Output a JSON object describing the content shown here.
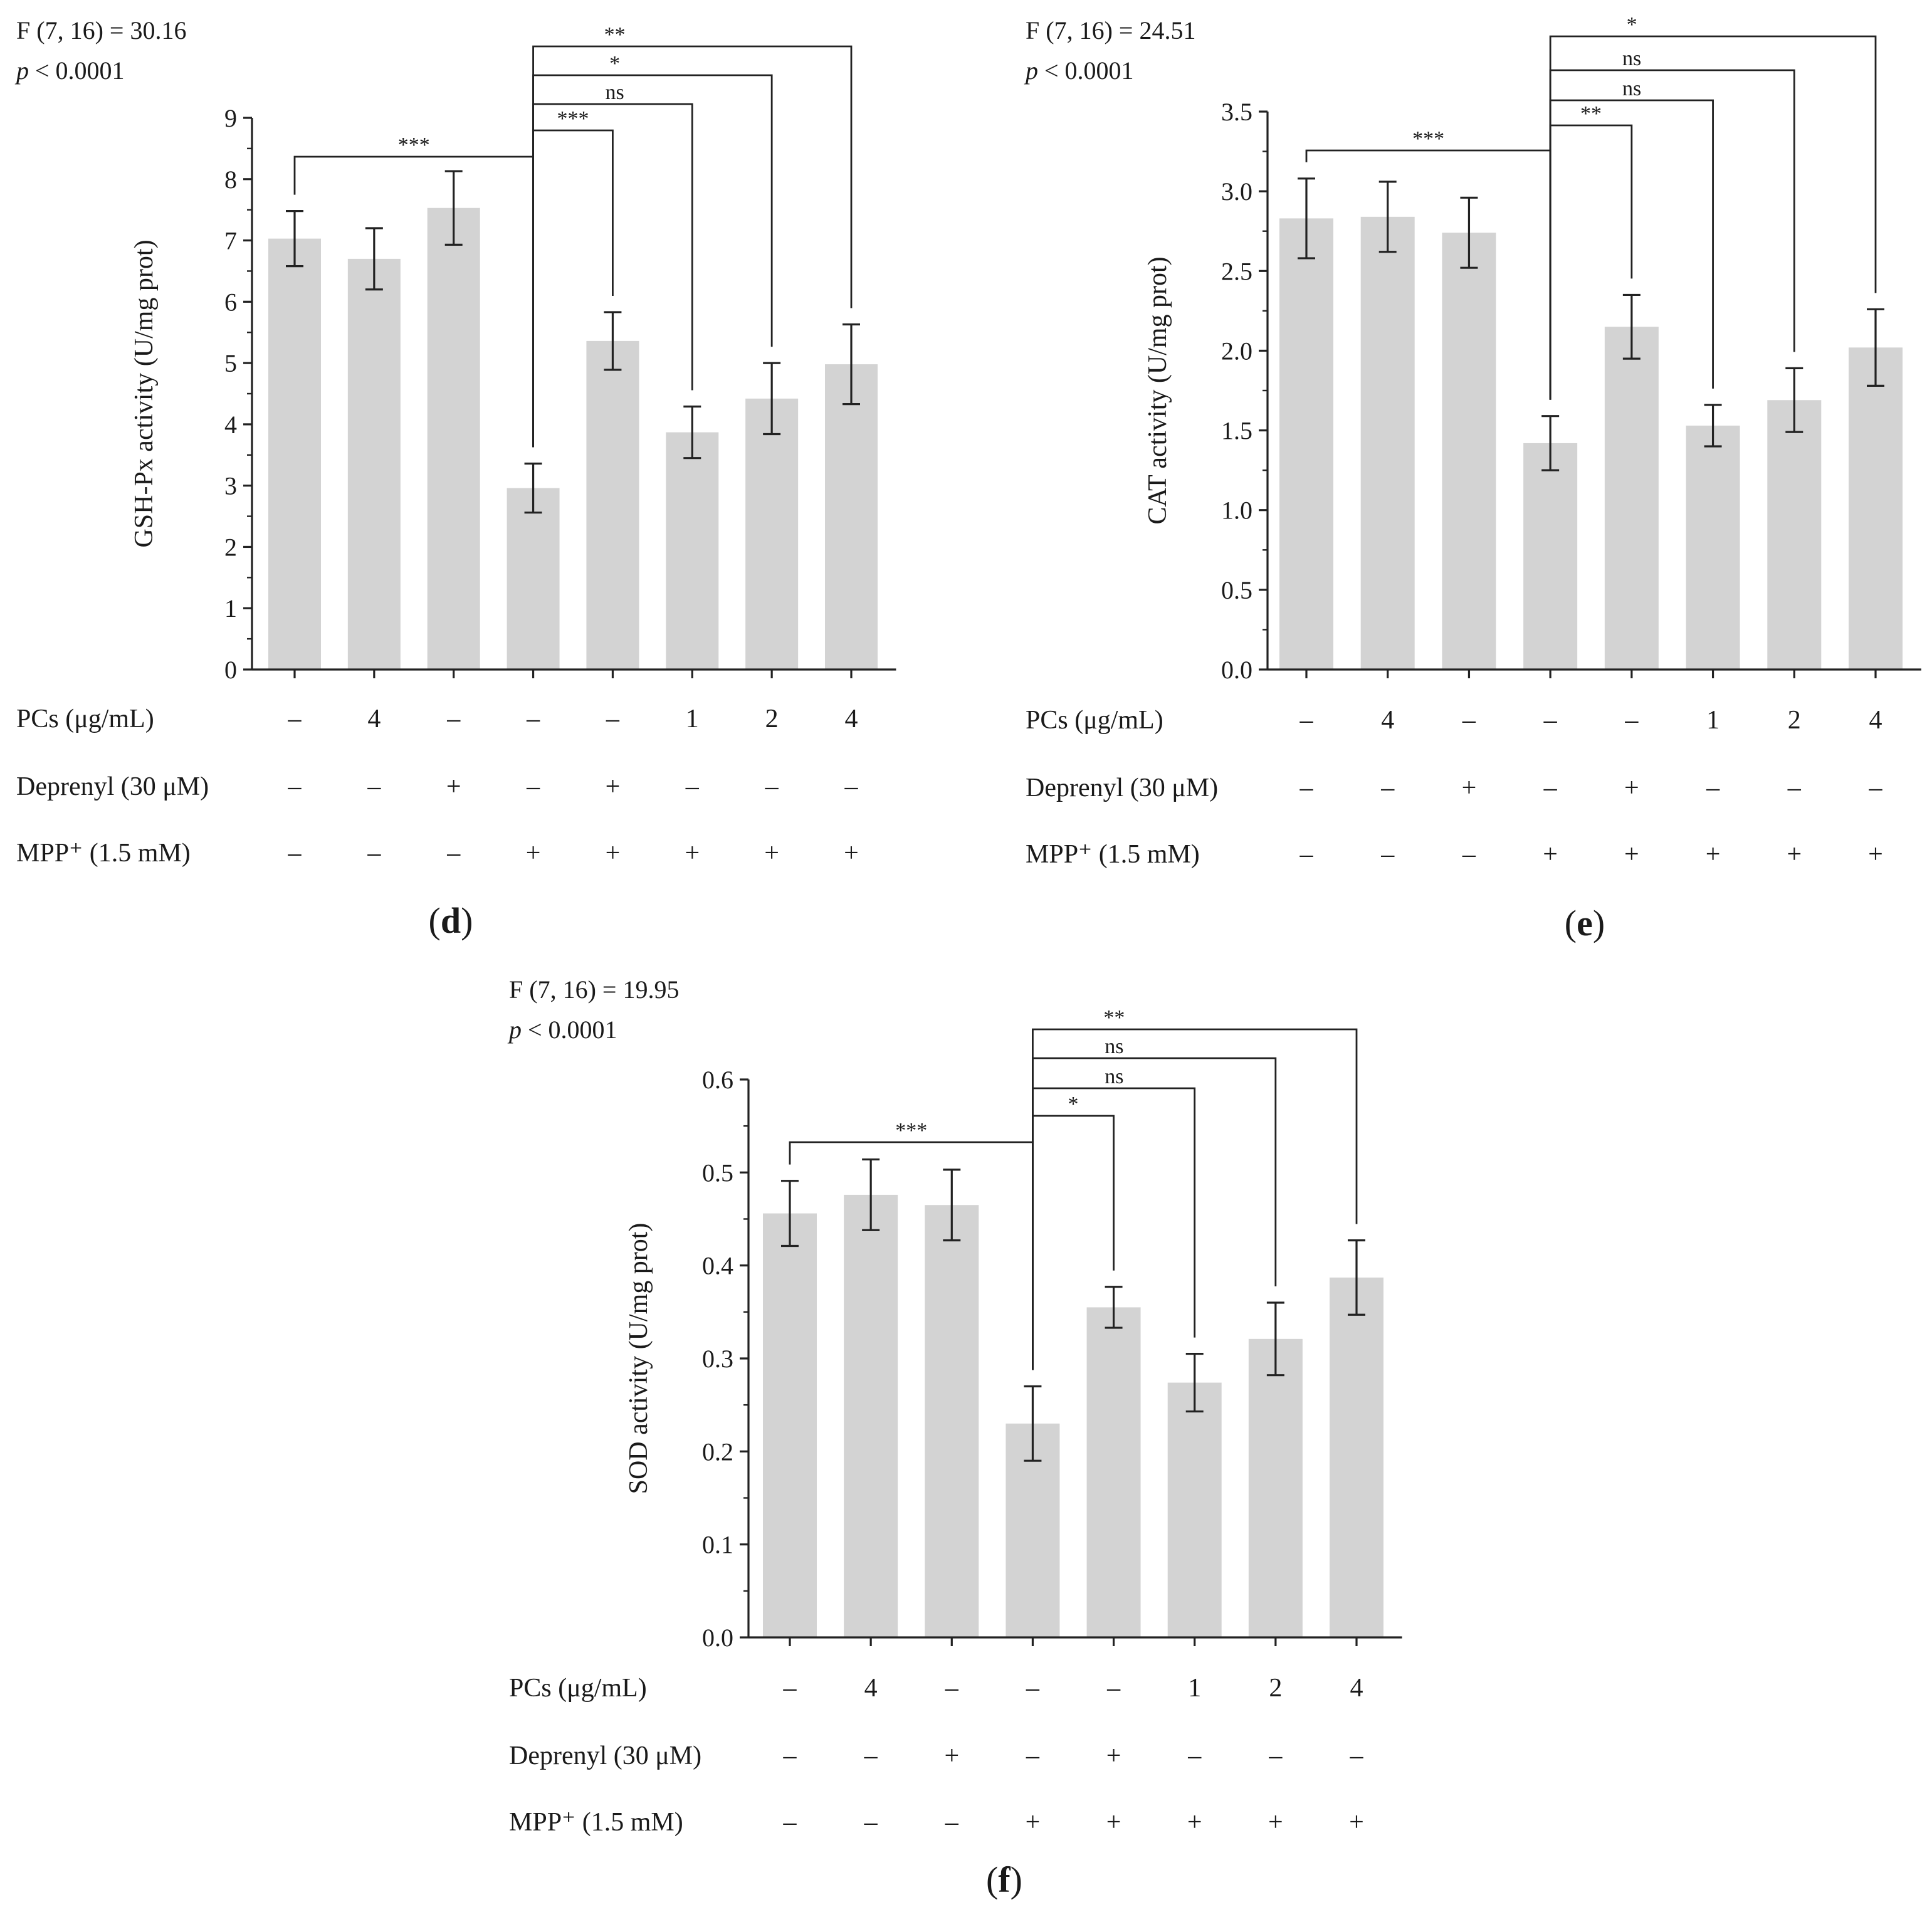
{
  "chart_data": [
    {
      "panel": "d",
      "type": "bar",
      "stat": {
        "f": "F (7, 16) = 30.16",
        "p_prefix": "p",
        "p_rest": " < 0.0001"
      },
      "ylabel": "GSH-Px activity (U/mg prot)",
      "ylim": [
        0,
        9
      ],
      "yticks": [
        "0",
        "1",
        "2",
        "3",
        "4",
        "5",
        "6",
        "7",
        "8",
        "9"
      ],
      "values": [
        7.03,
        6.7,
        7.53,
        2.96,
        5.36,
        3.87,
        4.42,
        4.98
      ],
      "errors": [
        0.45,
        0.5,
        0.6,
        0.4,
        0.47,
        0.42,
        0.58,
        0.65
      ],
      "comparisons": [
        {
          "from": 0,
          "to": 3,
          "label": "***"
        },
        {
          "from": 3,
          "to": 4,
          "label": "***"
        },
        {
          "from": 3,
          "to": 5,
          "label": "ns"
        },
        {
          "from": 3,
          "to": 6,
          "label": "*"
        },
        {
          "from": 3,
          "to": 7,
          "label": "**"
        }
      ],
      "rows": [
        {
          "label": "PCs (μg/mL)",
          "cells": [
            "–",
            "4",
            "–",
            "–",
            "–",
            "1",
            "2",
            "4"
          ]
        },
        {
          "label": "Deprenyl (30 μM)",
          "cells": [
            "–",
            "–",
            "+",
            "–",
            "+",
            "–",
            "–",
            "–"
          ]
        },
        {
          "label": "MPP⁺ (1.5 mM)",
          "cells": [
            "–",
            "–",
            "–",
            "+",
            "+",
            "+",
            "+",
            "+"
          ]
        }
      ]
    },
    {
      "panel": "e",
      "type": "bar",
      "stat": {
        "f": "F (7, 16) = 24.51",
        "p_prefix": "p",
        "p_rest": " < 0.0001"
      },
      "ylabel": "CAT activity (U/mg prot)",
      "ylim": [
        0,
        3.5
      ],
      "yticks": [
        "0.0",
        "0.5",
        "1.0",
        "1.5",
        "2.0",
        "2.5",
        "3.0",
        "3.5"
      ],
      "values": [
        2.83,
        2.84,
        2.74,
        1.42,
        2.15,
        1.53,
        1.69,
        2.02
      ],
      "errors": [
        0.25,
        0.22,
        0.22,
        0.17,
        0.2,
        0.13,
        0.2,
        0.24
      ],
      "comparisons": [
        {
          "from": 0,
          "to": 3,
          "label": "***"
        },
        {
          "from": 3,
          "to": 4,
          "label": "**"
        },
        {
          "from": 3,
          "to": 5,
          "label": "ns"
        },
        {
          "from": 3,
          "to": 6,
          "label": "ns"
        },
        {
          "from": 3,
          "to": 7,
          "label": "*"
        }
      ],
      "rows": [
        {
          "label": "PCs (μg/mL)",
          "cells": [
            "–",
            "4",
            "–",
            "–",
            "–",
            "1",
            "2",
            "4"
          ]
        },
        {
          "label": "Deprenyl (30 μM)",
          "cells": [
            "–",
            "–",
            "+",
            "–",
            "+",
            "–",
            "–",
            "–"
          ]
        },
        {
          "label": "MPP⁺ (1.5 mM)",
          "cells": [
            "–",
            "–",
            "–",
            "+",
            "+",
            "+",
            "+",
            "+"
          ]
        }
      ]
    },
    {
      "panel": "f",
      "type": "bar",
      "stat": {
        "f": "F (7, 16) = 19.95",
        "p_prefix": "p",
        "p_rest": " < 0.0001"
      },
      "ylabel": "SOD activity (U/mg prot)",
      "ylim": [
        0,
        0.6
      ],
      "yticks": [
        "0.0",
        "0.1",
        "0.2",
        "0.3",
        "0.4",
        "0.5",
        "0.6"
      ],
      "values": [
        0.456,
        0.476,
        0.465,
        0.23,
        0.355,
        0.274,
        0.321,
        0.387
      ],
      "errors": [
        0.035,
        0.038,
        0.038,
        0.04,
        0.022,
        0.031,
        0.039,
        0.04
      ],
      "comparisons": [
        {
          "from": 0,
          "to": 3,
          "label": "***"
        },
        {
          "from": 3,
          "to": 4,
          "label": "*"
        },
        {
          "from": 3,
          "to": 5,
          "label": "ns"
        },
        {
          "from": 3,
          "to": 6,
          "label": "ns"
        },
        {
          "from": 3,
          "to": 7,
          "label": "**"
        }
      ],
      "rows": [
        {
          "label": "PCs (μg/mL)",
          "cells": [
            "–",
            "4",
            "–",
            "–",
            "–",
            "1",
            "2",
            "4"
          ]
        },
        {
          "label": "Deprenyl (30 μM)",
          "cells": [
            "–",
            "–",
            "+",
            "–",
            "+",
            "–",
            "–",
            "–"
          ]
        },
        {
          "label": "MPP⁺ (1.5 mM)",
          "cells": [
            "–",
            "–",
            "–",
            "+",
            "+",
            "+",
            "+",
            "+"
          ]
        }
      ]
    }
  ],
  "colors": {
    "bar": "#d3d3d3",
    "ink": "#222222"
  }
}
